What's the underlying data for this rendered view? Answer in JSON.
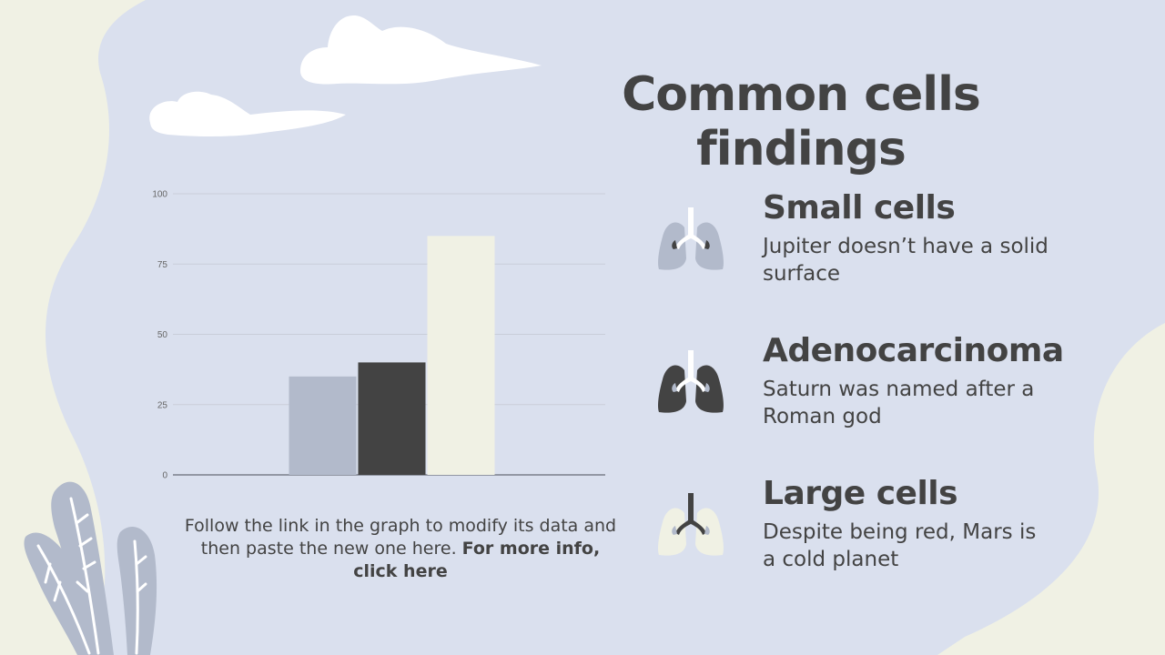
{
  "slide": {
    "title": "Common cells findings",
    "caption_text": "Follow the link in the graph to modify its data and then paste the new one here.",
    "caption_link": "For more info, click here"
  },
  "features": [
    {
      "title": "Small cells",
      "text": "Jupiter doesn’t have a solid surface",
      "icon": "lungs-icon",
      "color": "#b2bacb"
    },
    {
      "title": "Adenocarcinoma",
      "text": "Saturn was named after a Roman god",
      "icon": "lungs-icon",
      "color": "#434343"
    },
    {
      "title": "Large cells",
      "text": "Despite being red, Mars is a cold planet",
      "icon": "lungs-icon",
      "color": "#f0f1e4"
    }
  ],
  "colors": {
    "background_blob": "#dae0ee",
    "cream": "#f0f1e4",
    "text": "#434343",
    "grey_blue": "#b2bacb"
  },
  "chart_data": {
    "type": "bar",
    "categories": [
      "",
      "",
      ""
    ],
    "values": [
      35,
      40,
      85
    ],
    "colors": [
      "#b2bacb",
      "#434343",
      "#f0f1e4"
    ],
    "ylim": [
      0,
      100
    ],
    "yticks": [
      "0",
      "25",
      "50",
      "75",
      "100"
    ],
    "grid": true,
    "title": "",
    "xlabel": "",
    "ylabel": ""
  }
}
